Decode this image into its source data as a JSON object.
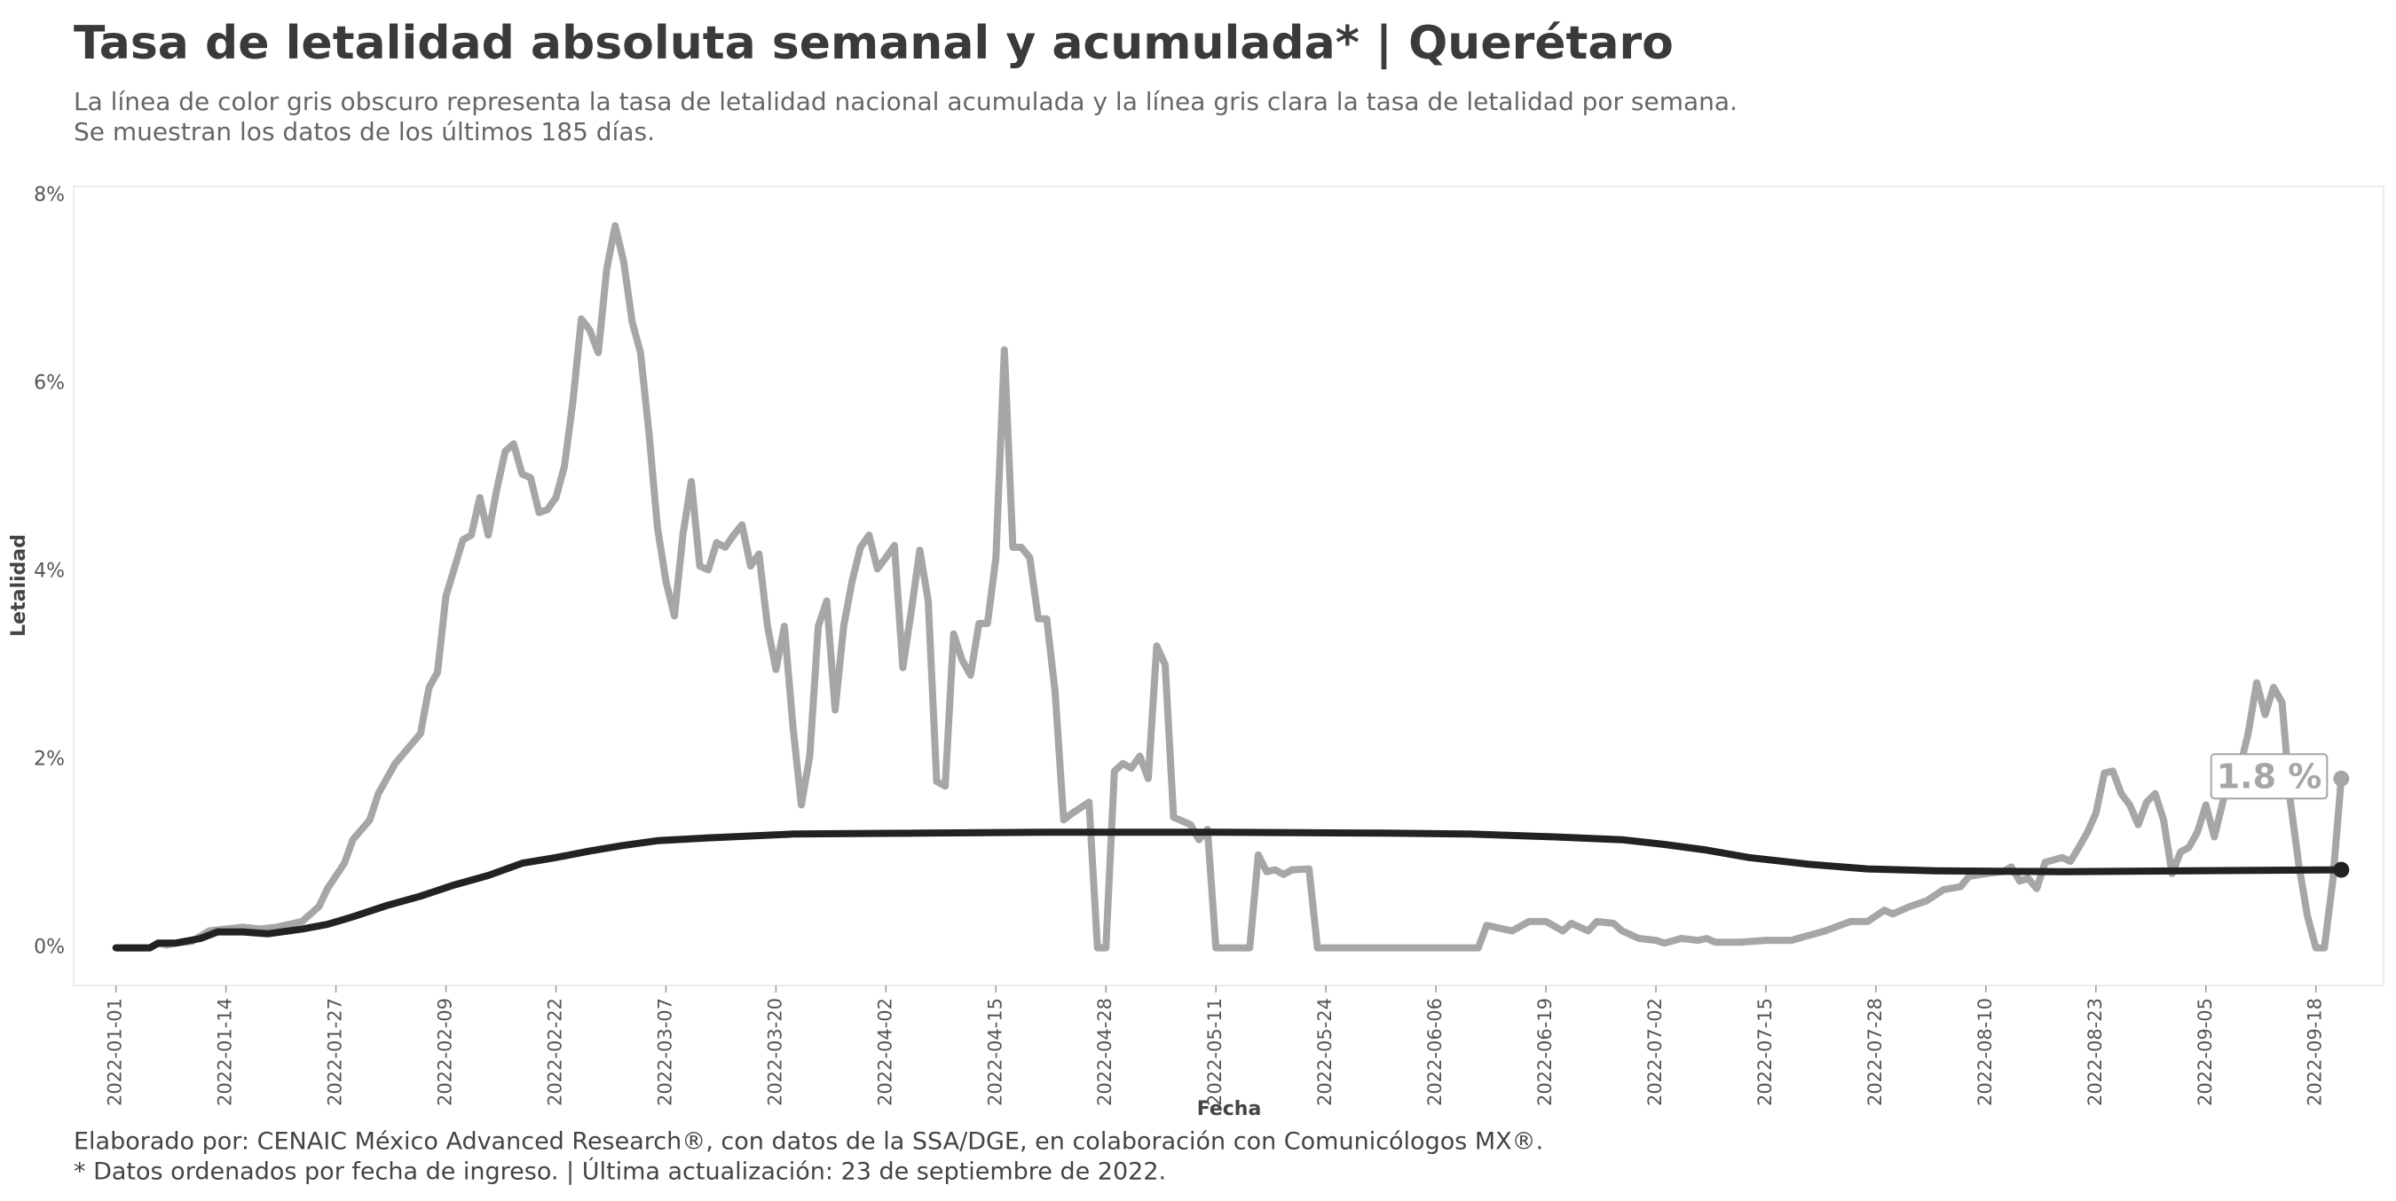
{
  "chart_data": {
    "type": "line",
    "title": "Tasa de letalidad absoluta semanal y acumulada* | Querétaro",
    "subtitle": [
      "La línea de color gris obscuro representa la tasa de letalidad nacional acumulada y la línea gris clara la tasa de letalidad por semana.",
      "Se muestran los datos de los últimos 185 días."
    ],
    "x_label": "Fecha",
    "y_label": "Letalidad",
    "footer": [
      "Elaborado por: CENAIC México Advanced Research®, con datos de la SSA/DGE, en colaboración con Comunicólogos MX®.",
      "* Datos ordenados por fecha de ingreso. | Última actualización: 23 de septiembre de 2022."
    ],
    "xlim": [
      "2021-12-27",
      "2022-09-26"
    ],
    "xticks": [
      "2022-01-01",
      "2022-01-14",
      "2022-01-27",
      "2022-02-09",
      "2022-02-22",
      "2022-03-07",
      "2022-03-20",
      "2022-04-02",
      "2022-04-15",
      "2022-04-28",
      "2022-05-11",
      "2022-05-24",
      "2022-06-06",
      "2022-06-19",
      "2022-07-02",
      "2022-07-15",
      "2022-07-28",
      "2022-08-10",
      "2022-08-23",
      "2022-09-05",
      "2022-09-18"
    ],
    "ylim": [
      -0.4,
      8.1
    ],
    "yticks": [
      {
        "value": 0,
        "label": "0%"
      },
      {
        "value": 2,
        "label": "2%"
      },
      {
        "value": 4,
        "label": "4%"
      },
      {
        "value": 6,
        "label": "6%"
      },
      {
        "value": 8,
        "label": "8%"
      }
    ],
    "grid": false,
    "series": [
      {
        "color": "#a6a6a6",
        "end_label": "1.8 %",
        "x": [
          "2022-01-01",
          "2022-01-05",
          "2022-01-06",
          "2022-01-07",
          "2022-01-08",
          "2022-01-10",
          "2022-01-12",
          "2022-01-14",
          "2022-01-16",
          "2022-01-18",
          "2022-01-20",
          "2022-01-23",
          "2022-01-25",
          "2022-01-26",
          "2022-01-28",
          "2022-01-29",
          "2022-01-31",
          "2022-02-01",
          "2022-02-03",
          "2022-02-06",
          "2022-02-07",
          "2022-02-08",
          "2022-02-09",
          "2022-02-11",
          "2022-02-12",
          "2022-02-13",
          "2022-02-14",
          "2022-02-15",
          "2022-02-16",
          "2022-02-17",
          "2022-02-18",
          "2022-02-19",
          "2022-02-20",
          "2022-02-21",
          "2022-02-22",
          "2022-02-23",
          "2022-02-24",
          "2022-02-25",
          "2022-02-26",
          "2022-02-27",
          "2022-02-28",
          "2022-03-01",
          "2022-03-02",
          "2022-03-03",
          "2022-03-04",
          "2022-03-05",
          "2022-03-06",
          "2022-03-07",
          "2022-03-08",
          "2022-03-09",
          "2022-03-10",
          "2022-03-11",
          "2022-03-12",
          "2022-03-13",
          "2022-03-14",
          "2022-03-15",
          "2022-03-16",
          "2022-03-17",
          "2022-03-18",
          "2022-03-19",
          "2022-03-20",
          "2022-03-21",
          "2022-03-22",
          "2022-03-23",
          "2022-03-24",
          "2022-03-25",
          "2022-03-26",
          "2022-03-27",
          "2022-03-28",
          "2022-03-29",
          "2022-03-30",
          "2022-03-31",
          "2022-04-01",
          "2022-04-02",
          "2022-04-03",
          "2022-04-04",
          "2022-04-05",
          "2022-04-06",
          "2022-04-07",
          "2022-04-08",
          "2022-04-09",
          "2022-04-10",
          "2022-04-11",
          "2022-04-12",
          "2022-04-13",
          "2022-04-14",
          "2022-04-15",
          "2022-04-16",
          "2022-04-17",
          "2022-04-18",
          "2022-04-19",
          "2022-04-20",
          "2022-04-21",
          "2022-04-22",
          "2022-04-23",
          "2022-04-24",
          "2022-04-26",
          "2022-04-27",
          "2022-04-28",
          "2022-04-29",
          "2022-04-30",
          "2022-05-01",
          "2022-05-02",
          "2022-05-03",
          "2022-05-04",
          "2022-05-05",
          "2022-05-06",
          "2022-05-08",
          "2022-05-09",
          "2022-05-10",
          "2022-05-11",
          "2022-05-15",
          "2022-05-16",
          "2022-05-17",
          "2022-05-18",
          "2022-05-19",
          "2022-05-20",
          "2022-05-22",
          "2022-05-23",
          "2022-06-11",
          "2022-06-12",
          "2022-06-13",
          "2022-06-15",
          "2022-06-17",
          "2022-06-19",
          "2022-06-21",
          "2022-06-22",
          "2022-06-24",
          "2022-06-25",
          "2022-06-27",
          "2022-06-28",
          "2022-06-30",
          "2022-07-02",
          "2022-07-03",
          "2022-07-05",
          "2022-07-07",
          "2022-07-08",
          "2022-07-09",
          "2022-07-12",
          "2022-07-15",
          "2022-07-18",
          "2022-07-20",
          "2022-07-22",
          "2022-07-25",
          "2022-07-27",
          "2022-07-29",
          "2022-07-30",
          "2022-08-01",
          "2022-08-03",
          "2022-08-05",
          "2022-08-07",
          "2022-08-08",
          "2022-08-10",
          "2022-08-12",
          "2022-08-13",
          "2022-08-14",
          "2022-08-15",
          "2022-08-16",
          "2022-08-17",
          "2022-08-19",
          "2022-08-20",
          "2022-08-21",
          "2022-08-22",
          "2022-08-23",
          "2022-08-24",
          "2022-08-25",
          "2022-08-26",
          "2022-08-27",
          "2022-08-28",
          "2022-08-29",
          "2022-08-30",
          "2022-08-31",
          "2022-09-01",
          "2022-09-02",
          "2022-09-03",
          "2022-09-04",
          "2022-09-05",
          "2022-09-06",
          "2022-09-07",
          "2022-09-08",
          "2022-09-09",
          "2022-09-10",
          "2022-09-11",
          "2022-09-12",
          "2022-09-13",
          "2022-09-14",
          "2022-09-15",
          "2022-09-16",
          "2022-09-17",
          "2022-09-18",
          "2022-09-19",
          "2022-09-20",
          "2022-09-21"
        ],
        "values": [
          0,
          0,
          0.05,
          0.03,
          0.05,
          0.07,
          0.18,
          0.2,
          0.22,
          0.2,
          0.22,
          0.28,
          0.44,
          0.63,
          0.9,
          1.15,
          1.36,
          1.64,
          1.96,
          2.28,
          2.77,
          2.93,
          3.74,
          4.34,
          4.39,
          4.79,
          4.39,
          4.87,
          5.28,
          5.36,
          5.04,
          5.0,
          4.63,
          4.66,
          4.79,
          5.12,
          5.81,
          6.69,
          6.57,
          6.33,
          7.22,
          7.68,
          7.3,
          6.66,
          6.33,
          5.47,
          4.47,
          3.9,
          3.53,
          4.39,
          4.96,
          4.06,
          4.02,
          4.31,
          4.26,
          4.39,
          4.5,
          4.06,
          4.19,
          3.42,
          2.96,
          3.42,
          2.36,
          1.52,
          2.04,
          3.42,
          3.69,
          2.53,
          3.42,
          3.9,
          4.26,
          4.39,
          4.03,
          4.15,
          4.28,
          2.98,
          3.58,
          4.23,
          3.69,
          1.77,
          1.72,
          3.34,
          3.06,
          2.9,
          3.45,
          3.45,
          4.15,
          6.36,
          4.26,
          4.26,
          4.15,
          3.5,
          3.5,
          2.72,
          1.36,
          1.43,
          1.55,
          0,
          0,
          1.88,
          1.96,
          1.91,
          2.04,
          1.8,
          3.21,
          3.01,
          1.39,
          1.31,
          1.15,
          1.26,
          0,
          0,
          0.99,
          0.81,
          0.83,
          0.78,
          0.83,
          0.84,
          0,
          0,
          0.24,
          0.22,
          0.18,
          0.28,
          0.28,
          0.18,
          0.26,
          0.18,
          0.28,
          0.26,
          0.18,
          0.1,
          0.08,
          0.05,
          0.1,
          0.08,
          0.1,
          0.06,
          0.06,
          0.08,
          0.08,
          0.13,
          0.18,
          0.28,
          0.28,
          0.4,
          0.36,
          0.44,
          0.5,
          0.62,
          0.65,
          0.76,
          0.79,
          0.81,
          0.86,
          0.71,
          0.74,
          0.63,
          0.91,
          0.96,
          0.92,
          1.07,
          1.23,
          1.43,
          1.86,
          1.88,
          1.64,
          1.52,
          1.31,
          1.55,
          1.64,
          1.36,
          0.79,
          1.02,
          1.07,
          1.23,
          1.52,
          1.18,
          1.55,
          1.86,
          1.91,
          2.28,
          2.82,
          2.48,
          2.77,
          2.61,
          1.55,
          0.87,
          0.34,
          0,
          0,
          0.72,
          1.8
        ]
      },
      {
        "color": "#222222",
        "x": [
          "2022-01-01",
          "2022-01-05",
          "2022-01-06",
          "2022-01-08",
          "2022-01-11",
          "2022-01-13",
          "2022-01-16",
          "2022-01-19",
          "2022-01-23",
          "2022-01-26",
          "2022-01-29",
          "2022-02-02",
          "2022-02-06",
          "2022-02-10",
          "2022-02-14",
          "2022-02-18",
          "2022-02-22",
          "2022-02-26",
          "2022-03-02",
          "2022-03-06",
          "2022-03-12",
          "2022-03-22",
          "2022-04-06",
          "2022-04-21",
          "2022-05-11",
          "2022-05-31",
          "2022-06-10",
          "2022-06-20",
          "2022-06-28",
          "2022-07-03",
          "2022-07-08",
          "2022-07-13",
          "2022-07-20",
          "2022-07-27",
          "2022-08-04",
          "2022-08-19",
          "2022-09-03",
          "2022-09-21"
        ],
        "values": [
          0,
          0,
          0.05,
          0.05,
          0.1,
          0.17,
          0.17,
          0.15,
          0.2,
          0.25,
          0.33,
          0.45,
          0.55,
          0.67,
          0.77,
          0.9,
          0.96,
          1.03,
          1.09,
          1.14,
          1.17,
          1.21,
          1.22,
          1.23,
          1.23,
          1.22,
          1.21,
          1.18,
          1.15,
          1.1,
          1.04,
          0.96,
          0.89,
          0.84,
          0.82,
          0.81,
          0.82,
          0.83
        ]
      }
    ]
  }
}
